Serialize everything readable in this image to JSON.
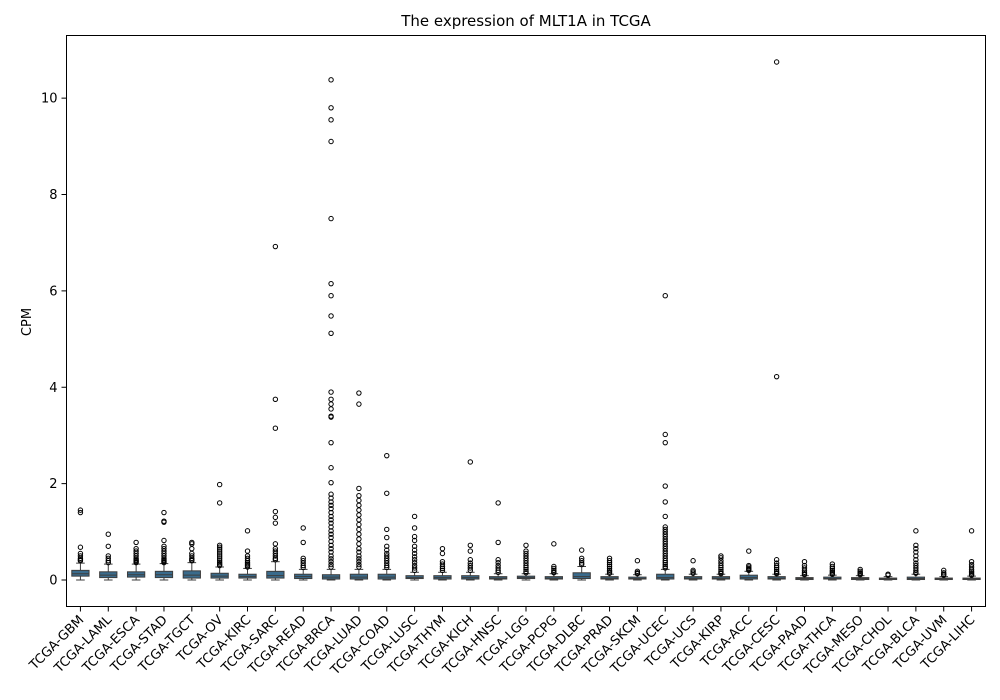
{
  "chart_data": {
    "type": "box",
    "title": "The expression of MLT1A in TCGA",
    "xlabel": "",
    "ylabel": "CPM",
    "ylim": [
      -0.55,
      11.3
    ],
    "yticks": [
      0,
      2,
      4,
      6,
      8,
      10
    ],
    "grid": false,
    "box_color": "#3a6b8c",
    "categories": [
      "TCGA-GBM",
      "TCGA-LAML",
      "TCGA-ESCA",
      "TCGA-STAD",
      "TCGA-TGCT",
      "TCGA-OV",
      "TCGA-KIRC",
      "TCGA-SARC",
      "TCGA-READ",
      "TCGA-BRCA",
      "TCGA-LUAD",
      "TCGA-COAD",
      "TCGA-LUSC",
      "TCGA-THYM",
      "TCGA-KICH",
      "TCGA-HNSC",
      "TCGA-LGG",
      "TCGA-PCPG",
      "TCGA-DLBC",
      "TCGA-PRAD",
      "TCGA-SKCM",
      "TCGA-UCEC",
      "TCGA-UCS",
      "TCGA-KIRP",
      "TCGA-ACC",
      "TCGA-CESC",
      "TCGA-PAAD",
      "TCGA-THCA",
      "TCGA-MESO",
      "TCGA-CHOL",
      "TCGA-BLCA",
      "TCGA-UVM",
      "TCGA-LIHC"
    ],
    "boxes": [
      {
        "q1": 0.08,
        "median": 0.13,
        "q3": 0.2,
        "whislo": 0.0,
        "whishi": 0.35,
        "fliers": [
          1.45,
          1.4,
          0.68,
          0.55,
          0.5,
          0.45,
          0.42,
          0.4
        ]
      },
      {
        "q1": 0.05,
        "median": 0.1,
        "q3": 0.17,
        "whislo": 0.0,
        "whishi": 0.33,
        "fliers": [
          0.95,
          0.7,
          0.5,
          0.45,
          0.4,
          0.36
        ]
      },
      {
        "q1": 0.06,
        "median": 0.11,
        "q3": 0.17,
        "whislo": 0.0,
        "whishi": 0.33,
        "fliers": [
          0.78,
          0.65,
          0.6,
          0.55,
          0.5,
          0.45,
          0.42,
          0.4,
          0.38,
          0.36
        ]
      },
      {
        "q1": 0.05,
        "median": 0.11,
        "q3": 0.18,
        "whislo": 0.0,
        "whishi": 0.34,
        "fliers": [
          1.4,
          1.22,
          1.2,
          0.82,
          0.7,
          0.65,
          0.6,
          0.55,
          0.5,
          0.45,
          0.42,
          0.4,
          0.38,
          0.36
        ]
      },
      {
        "q1": 0.04,
        "median": 0.1,
        "q3": 0.19,
        "whislo": 0.0,
        "whishi": 0.36,
        "fliers": [
          0.78,
          0.75,
          0.65,
          0.55,
          0.5,
          0.45,
          0.42,
          0.4
        ]
      },
      {
        "q1": 0.04,
        "median": 0.08,
        "q3": 0.14,
        "whislo": 0.0,
        "whishi": 0.27,
        "fliers": [
          1.98,
          1.6,
          0.72,
          0.68,
          0.64,
          0.6,
          0.56,
          0.52,
          0.48,
          0.44,
          0.4,
          0.36,
          0.33,
          0.3
        ]
      },
      {
        "q1": 0.04,
        "median": 0.07,
        "q3": 0.12,
        "whislo": 0.0,
        "whishi": 0.24,
        "fliers": [
          1.02,
          0.6,
          0.5,
          0.45,
          0.4,
          0.36,
          0.33,
          0.3,
          0.27
        ]
      },
      {
        "q1": 0.04,
        "median": 0.09,
        "q3": 0.18,
        "whislo": 0.0,
        "whishi": 0.38,
        "fliers": [
          6.92,
          3.75,
          3.15,
          1.42,
          1.3,
          1.18,
          0.75,
          0.65,
          0.6,
          0.55,
          0.5,
          0.45,
          0.42
        ]
      },
      {
        "q1": 0.03,
        "median": 0.07,
        "q3": 0.12,
        "whislo": 0.0,
        "whishi": 0.22,
        "fliers": [
          1.08,
          0.78,
          0.45,
          0.4,
          0.35,
          0.3,
          0.26
        ]
      },
      {
        "q1": 0.02,
        "median": 0.06,
        "q3": 0.11,
        "whislo": 0.0,
        "whishi": 0.22,
        "fliers": [
          10.38,
          9.8,
          9.55,
          9.1,
          7.5,
          6.15,
          5.9,
          5.48,
          5.12,
          3.9,
          3.75,
          3.65,
          3.55,
          3.4,
          3.38,
          2.85,
          2.33,
          2.02,
          1.78,
          1.7,
          1.62,
          1.55,
          1.48,
          1.4,
          1.32,
          1.25,
          1.18,
          1.1,
          1.02,
          0.95,
          0.88,
          0.8,
          0.72,
          0.65,
          0.58,
          0.5,
          0.44,
          0.38,
          0.32,
          0.27
        ]
      },
      {
        "q1": 0.02,
        "median": 0.06,
        "q3": 0.12,
        "whislo": 0.0,
        "whishi": 0.22,
        "fliers": [
          3.88,
          3.65,
          1.9,
          1.75,
          1.65,
          1.55,
          1.45,
          1.35,
          1.25,
          1.15,
          1.05,
          0.95,
          0.85,
          0.75,
          0.65,
          0.58,
          0.5,
          0.44,
          0.38,
          0.32,
          0.27
        ]
      },
      {
        "q1": 0.02,
        "median": 0.06,
        "q3": 0.12,
        "whislo": 0.0,
        "whishi": 0.22,
        "fliers": [
          2.58,
          1.8,
          1.05,
          0.88,
          0.7,
          0.62,
          0.55,
          0.5,
          0.45,
          0.4,
          0.35,
          0.3,
          0.26
        ]
      },
      {
        "q1": 0.03,
        "median": 0.05,
        "q3": 0.09,
        "whislo": 0.0,
        "whishi": 0.16,
        "fliers": [
          1.32,
          1.08,
          0.9,
          0.82,
          0.7,
          0.62,
          0.55,
          0.48,
          0.42,
          0.36,
          0.3,
          0.25,
          0.2
        ]
      },
      {
        "q1": 0.02,
        "median": 0.05,
        "q3": 0.09,
        "whislo": 0.0,
        "whishi": 0.16,
        "fliers": [
          0.65,
          0.55,
          0.38,
          0.33,
          0.28,
          0.24,
          0.2
        ]
      },
      {
        "q1": 0.02,
        "median": 0.05,
        "q3": 0.09,
        "whislo": 0.0,
        "whishi": 0.16,
        "fliers": [
          2.45,
          0.72,
          0.6,
          0.42,
          0.35,
          0.3,
          0.25,
          0.2
        ]
      },
      {
        "q1": 0.02,
        "median": 0.04,
        "q3": 0.07,
        "whislo": 0.0,
        "whishi": 0.13,
        "fliers": [
          1.6,
          0.78,
          0.42,
          0.36,
          0.3,
          0.25,
          0.2,
          0.16
        ]
      },
      {
        "q1": 0.03,
        "median": 0.05,
        "q3": 0.08,
        "whislo": 0.0,
        "whishi": 0.13,
        "fliers": [
          0.72,
          0.6,
          0.55,
          0.5,
          0.45,
          0.4,
          0.35,
          0.3,
          0.26,
          0.22,
          0.18,
          0.15
        ]
      },
      {
        "q1": 0.02,
        "median": 0.04,
        "q3": 0.07,
        "whislo": 0.0,
        "whishi": 0.13,
        "fliers": [
          0.75,
          0.28,
          0.24,
          0.2,
          0.17,
          0.15
        ]
      },
      {
        "q1": 0.03,
        "median": 0.07,
        "q3": 0.15,
        "whislo": 0.0,
        "whishi": 0.28,
        "fliers": [
          0.62,
          0.45,
          0.4,
          0.35,
          0.32
        ]
      },
      {
        "q1": 0.02,
        "median": 0.04,
        "q3": 0.07,
        "whislo": 0.0,
        "whishi": 0.12,
        "fliers": [
          0.45,
          0.4,
          0.36,
          0.32,
          0.28,
          0.24,
          0.2,
          0.17,
          0.14
        ]
      },
      {
        "q1": 0.02,
        "median": 0.03,
        "q3": 0.06,
        "whislo": 0.0,
        "whishi": 0.11,
        "fliers": [
          0.4,
          0.18,
          0.15,
          0.13
        ]
      },
      {
        "q1": 0.02,
        "median": 0.05,
        "q3": 0.12,
        "whislo": 0.0,
        "whishi": 0.22,
        "fliers": [
          5.9,
          3.02,
          2.85,
          1.95,
          1.62,
          1.32,
          1.1,
          1.05,
          1.0,
          0.95,
          0.9,
          0.85,
          0.8,
          0.75,
          0.7,
          0.65,
          0.6,
          0.55,
          0.5,
          0.45,
          0.4,
          0.36,
          0.32,
          0.28,
          0.25
        ]
      },
      {
        "q1": 0.02,
        "median": 0.04,
        "q3": 0.07,
        "whislo": 0.0,
        "whishi": 0.12,
        "fliers": [
          0.4,
          0.2,
          0.17,
          0.14
        ]
      },
      {
        "q1": 0.02,
        "median": 0.04,
        "q3": 0.07,
        "whislo": 0.0,
        "whishi": 0.12,
        "fliers": [
          0.5,
          0.46,
          0.4,
          0.35,
          0.3,
          0.26,
          0.22,
          0.18,
          0.15,
          0.13
        ]
      },
      {
        "q1": 0.02,
        "median": 0.05,
        "q3": 0.1,
        "whislo": 0.0,
        "whishi": 0.18,
        "fliers": [
          0.6,
          0.3,
          0.27,
          0.24,
          0.22,
          0.2
        ]
      },
      {
        "q1": 0.02,
        "median": 0.04,
        "q3": 0.07,
        "whislo": 0.0,
        "whishi": 0.12,
        "fliers": [
          10.75,
          4.22,
          0.42,
          0.35,
          0.3,
          0.26,
          0.22,
          0.18,
          0.15,
          0.13
        ]
      },
      {
        "q1": 0.01,
        "median": 0.03,
        "q3": 0.05,
        "whislo": 0.0,
        "whishi": 0.09,
        "fliers": [
          0.38,
          0.3,
          0.25,
          0.2,
          0.16,
          0.13,
          0.11
        ]
      },
      {
        "q1": 0.02,
        "median": 0.03,
        "q3": 0.06,
        "whislo": 0.0,
        "whishi": 0.1,
        "fliers": [
          0.33,
          0.28,
          0.24,
          0.2,
          0.17,
          0.14,
          0.12
        ]
      },
      {
        "q1": 0.01,
        "median": 0.03,
        "q3": 0.05,
        "whislo": 0.0,
        "whishi": 0.09,
        "fliers": [
          0.22,
          0.18,
          0.15,
          0.13,
          0.11
        ]
      },
      {
        "q1": 0.01,
        "median": 0.02,
        "q3": 0.04,
        "whislo": 0.0,
        "whishi": 0.07,
        "fliers": [
          0.12,
          0.1
        ]
      },
      {
        "q1": 0.01,
        "median": 0.03,
        "q3": 0.06,
        "whislo": 0.0,
        "whishi": 0.12,
        "fliers": [
          1.02,
          0.72,
          0.65,
          0.58,
          0.5,
          0.42,
          0.35,
          0.3,
          0.25,
          0.2,
          0.16,
          0.14
        ]
      },
      {
        "q1": 0.01,
        "median": 0.02,
        "q3": 0.04,
        "whislo": 0.0,
        "whishi": 0.07,
        "fliers": [
          0.2,
          0.15,
          0.12,
          0.1
        ]
      },
      {
        "q1": 0.01,
        "median": 0.02,
        "q3": 0.04,
        "whislo": 0.0,
        "whishi": 0.08,
        "fliers": [
          1.02,
          0.38,
          0.32,
          0.27,
          0.22,
          0.18,
          0.15,
          0.12,
          0.1
        ]
      }
    ]
  }
}
